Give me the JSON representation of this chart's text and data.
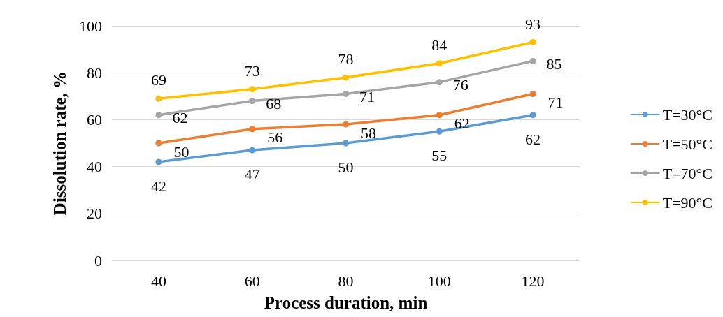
{
  "chart_data": {
    "type": "line",
    "xlabel": "Process duration, min",
    "ylabel": "Dissolution rate, %",
    "categories": [
      "40",
      "60",
      "80",
      "100",
      "120"
    ],
    "series": [
      {
        "name": "T=30°C",
        "color": "#5b9bd5",
        "values": [
          42,
          47,
          50,
          55,
          62
        ]
      },
      {
        "name": "T=50°C",
        "color": "#ed7d31",
        "values": [
          50,
          56,
          58,
          62,
          71
        ]
      },
      {
        "name": "T=70°C",
        "color": "#a5a5a5",
        "values": [
          62,
          68,
          71,
          76,
          85
        ]
      },
      {
        "name": "T=90°C",
        "color": "#ffc000",
        "values": [
          69,
          73,
          78,
          84,
          93
        ]
      }
    ],
    "ylim": [
      0,
      100
    ],
    "yticks": [
      0,
      20,
      40,
      60,
      80,
      100
    ],
    "grid": "y",
    "legend": "right",
    "marker": "circle",
    "line_style": "solid",
    "data_labels": true
  }
}
